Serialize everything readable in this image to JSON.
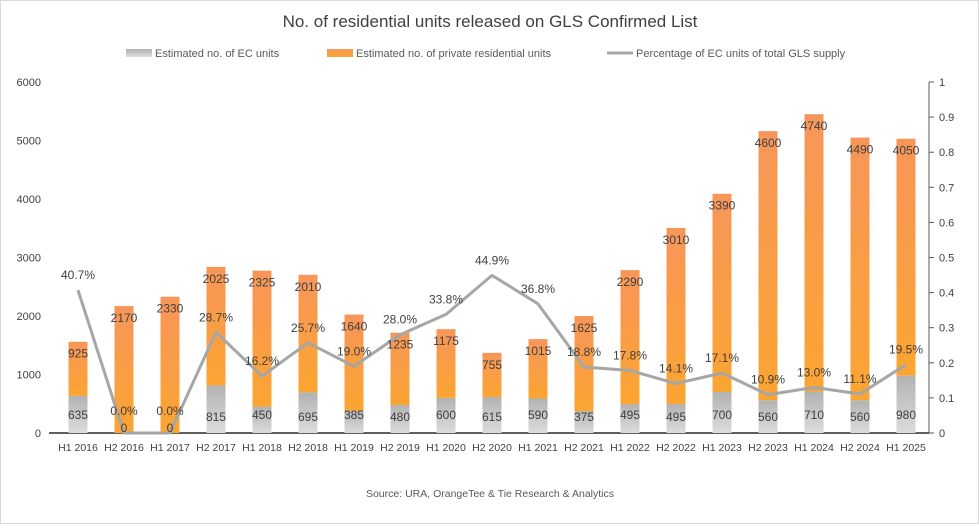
{
  "chart_data": {
    "type": "bar",
    "stacked": true,
    "title": "No. of residential units released on GLS Confirmed List",
    "source": "Source: URA, OrangeTee & Tie Research & Analytics",
    "categories": [
      "H1 2016",
      "H2 2016",
      "H1 2017",
      "H2 2017",
      "H1 2018",
      "H2 2018",
      "H1 2019",
      "H2 2019",
      "H1 2020",
      "H2 2020",
      "H1 2021",
      "H2 2021",
      "H1 2022",
      "H2 2022",
      "H1 2023",
      "H2 2023",
      "H1 2024",
      "H2 2024",
      "H1 2025"
    ],
    "series": [
      {
        "name": "Estimated no. of EC units",
        "type": "bar",
        "axis": "left",
        "color": "#bdbdbd",
        "values": [
          635,
          0,
          0,
          815,
          450,
          695,
          385,
          480,
          600,
          615,
          590,
          375,
          495,
          495,
          700,
          560,
          710,
          560,
          980
        ]
      },
      {
        "name": "Estimated no. of private residential units",
        "type": "bar",
        "axis": "left",
        "color": "#f9953f",
        "values": [
          925,
          2170,
          2330,
          2025,
          2325,
          2010,
          1640,
          1235,
          1175,
          755,
          1015,
          1625,
          2290,
          3010,
          3390,
          4600,
          4740,
          4490,
          4050
        ]
      },
      {
        "name": "Percentage of EC units of total GLS supply",
        "type": "line",
        "axis": "right",
        "color": "#a6a6a6",
        "values": [
          0.407,
          0.0,
          0.0,
          0.287,
          0.162,
          0.257,
          0.19,
          0.28,
          0.338,
          0.449,
          0.368,
          0.188,
          0.178,
          0.141,
          0.171,
          0.109,
          0.13,
          0.111,
          0.195
        ],
        "labels": [
          "40.7%",
          "0.0%",
          "0.0%",
          "28.7%",
          "16.2%",
          "25.7%",
          "19.0%",
          "28.0%",
          "33.8%",
          "44.9%",
          "36.8%",
          "18.8%",
          "17.8%",
          "14.1%",
          "17.1%",
          "10.9%",
          "13.0%",
          "11.1%",
          "19.5%"
        ]
      }
    ],
    "y_left": {
      "range": [
        0,
        6000
      ],
      "ticks": [
        "0",
        "1000",
        "2000",
        "3000",
        "4000",
        "5000",
        "6000"
      ]
    },
    "y_right": {
      "range": [
        0,
        1
      ],
      "ticks": [
        "0",
        "0.1",
        "0.2",
        "0.3",
        "0.4",
        "0.5",
        "0.6",
        "0.7",
        "0.8",
        "0.9",
        "1"
      ]
    },
    "legend_position": "top",
    "grid": false
  }
}
